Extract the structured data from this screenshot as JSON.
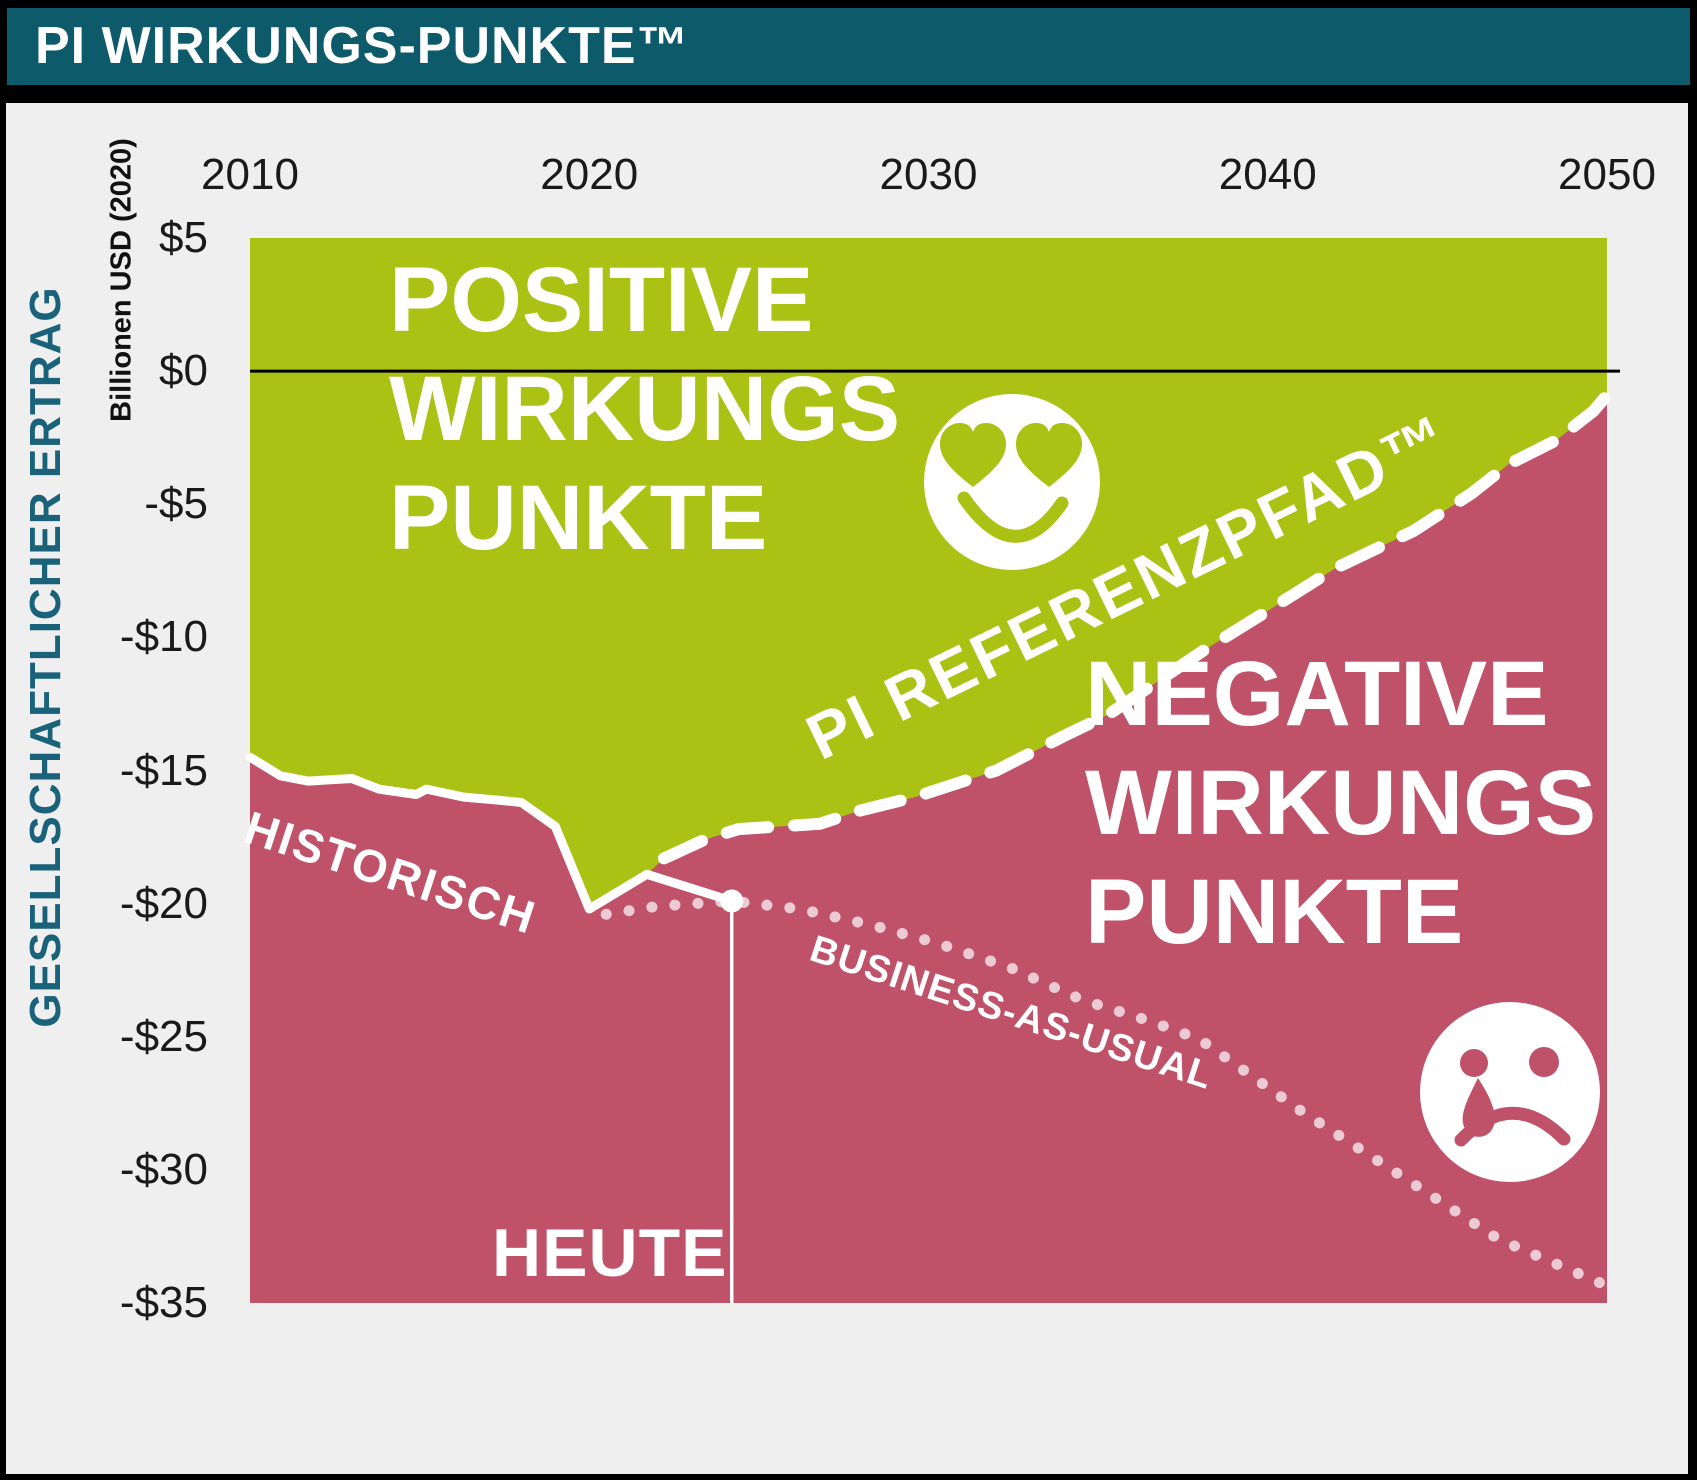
{
  "header": {
    "title": "PI WIRKUNGS-PUNKTE™"
  },
  "y_axis": {
    "title": "GESELLSCHAFTLICHER ERTRAG",
    "unit_label": "Billionen USD (2020)"
  },
  "region_labels": {
    "positive": {
      "line1": "POSITIVE",
      "line2": "WIRKUNGS",
      "line3": "PUNKTE"
    },
    "negative": {
      "line1": "NEGATIVE",
      "line2": "WIRKUNGS",
      "line3": "PUNKTE"
    }
  },
  "line_labels": {
    "historical": "HISTORISCH",
    "reference": "PI REFERENZPFAD™",
    "business_as_usual": "BUSINESS-AS-USUAL",
    "today": "HEUTE"
  },
  "icons": {
    "positive_face": "heart-eyes-smiley-icon",
    "negative_face": "sad-crying-smiley-icon"
  },
  "colors": {
    "header_teal": "#0d5a6b",
    "axis_title_teal": "#19627a",
    "positive_green": "#aac213",
    "negative_magenta": "#bf5168",
    "bau_dot_pink": "#eccad4",
    "panel_gray": "#efefef",
    "line_white": "#ffffff",
    "zero_line_black": "#000000"
  },
  "chart_data": {
    "type": "area",
    "title": "PI WIRKUNGS-PUNKTE™",
    "xlabel": "",
    "ylabel": "Billionen USD (2020)",
    "xlim": [
      2010,
      2050
    ],
    "ylim": [
      -35,
      5
    ],
    "grid": false,
    "xticks": [
      {
        "label": "2010",
        "value": 2010
      },
      {
        "label": "2020",
        "value": 2020
      },
      {
        "label": "2030",
        "value": 2030
      },
      {
        "label": "2040",
        "value": 2040
      },
      {
        "label": "2050",
        "value": 2050
      }
    ],
    "yticks": [
      {
        "label": "$5",
        "value": 5
      },
      {
        "label": "$0",
        "value": 0
      },
      {
        "label": "-$5",
        "value": -5
      },
      {
        "label": "-$10",
        "value": -10
      },
      {
        "label": "-$15",
        "value": -15
      },
      {
        "label": "-$20",
        "value": -20
      },
      {
        "label": "-$25",
        "value": -25
      },
      {
        "label": "-$30",
        "value": -30
      },
      {
        "label": "-$35",
        "value": -35
      }
    ],
    "series": [
      {
        "name": "HISTORISCH",
        "style": "solid",
        "color": "#ffffff",
        "points": [
          [
            2010.0,
            -14.5
          ],
          [
            2010.9,
            -15.2
          ],
          [
            2011.7,
            -15.4
          ],
          [
            2013.0,
            -15.3
          ],
          [
            2013.8,
            -15.7
          ],
          [
            2014.9,
            -15.9
          ],
          [
            2015.2,
            -15.7
          ],
          [
            2016.3,
            -16.0
          ],
          [
            2017.2,
            -16.1
          ],
          [
            2018.0,
            -16.2
          ],
          [
            2019.0,
            -17.1
          ],
          [
            2020.0,
            -20.2
          ],
          [
            2021.7,
            -18.9
          ],
          [
            2024.2,
            -19.9
          ]
        ]
      },
      {
        "name": "PI REFERENZPFAD™",
        "style": "dashed",
        "color": "#ffffff",
        "points": [
          [
            2022.2,
            -18.3
          ],
          [
            2023.4,
            -17.6
          ],
          [
            2024.4,
            -17.2
          ],
          [
            2026.8,
            -17.0
          ],
          [
            2028.0,
            -16.5
          ],
          [
            2029.6,
            -16.0
          ],
          [
            2032.0,
            -15.0
          ],
          [
            2034.0,
            -13.7
          ],
          [
            2035.3,
            -12.9
          ],
          [
            2038.1,
            -10.5
          ],
          [
            2040.0,
            -9.0
          ],
          [
            2042.0,
            -7.4
          ],
          [
            2044.3,
            -6.0
          ],
          [
            2046.0,
            -4.6
          ],
          [
            2047.1,
            -3.5
          ],
          [
            2048.5,
            -2.6
          ],
          [
            2049.6,
            -1.5
          ],
          [
            2050.0,
            -0.9
          ]
        ]
      },
      {
        "name": "BUSINESS-AS-USUAL",
        "style": "dotted",
        "color": "#eccad4",
        "points": [
          [
            2020.5,
            -20.4
          ],
          [
            2022.0,
            -20.1
          ],
          [
            2024.2,
            -19.9
          ],
          [
            2026.2,
            -20.2
          ],
          [
            2028.3,
            -20.8
          ],
          [
            2030.3,
            -21.5
          ],
          [
            2032.4,
            -22.4
          ],
          [
            2034.5,
            -23.6
          ],
          [
            2036.5,
            -24.4
          ],
          [
            2038.0,
            -25.1
          ],
          [
            2041.0,
            -27.8
          ],
          [
            2043.9,
            -30.2
          ],
          [
            2046.8,
            -32.6
          ],
          [
            2049.9,
            -34.3
          ]
        ]
      }
    ],
    "today_marker": {
      "label": "HEUTE",
      "year": 2024.2,
      "value": -19.9
    },
    "areas": [
      {
        "name": "POSITIVE WIRKUNGS PUNKTE",
        "color": "#aac213",
        "position": "above reference path"
      },
      {
        "name": "NEGATIVE WIRKUNGS PUNKTE",
        "color": "#bf5168",
        "position": "below reference path"
      }
    ],
    "legend_position": "none"
  }
}
